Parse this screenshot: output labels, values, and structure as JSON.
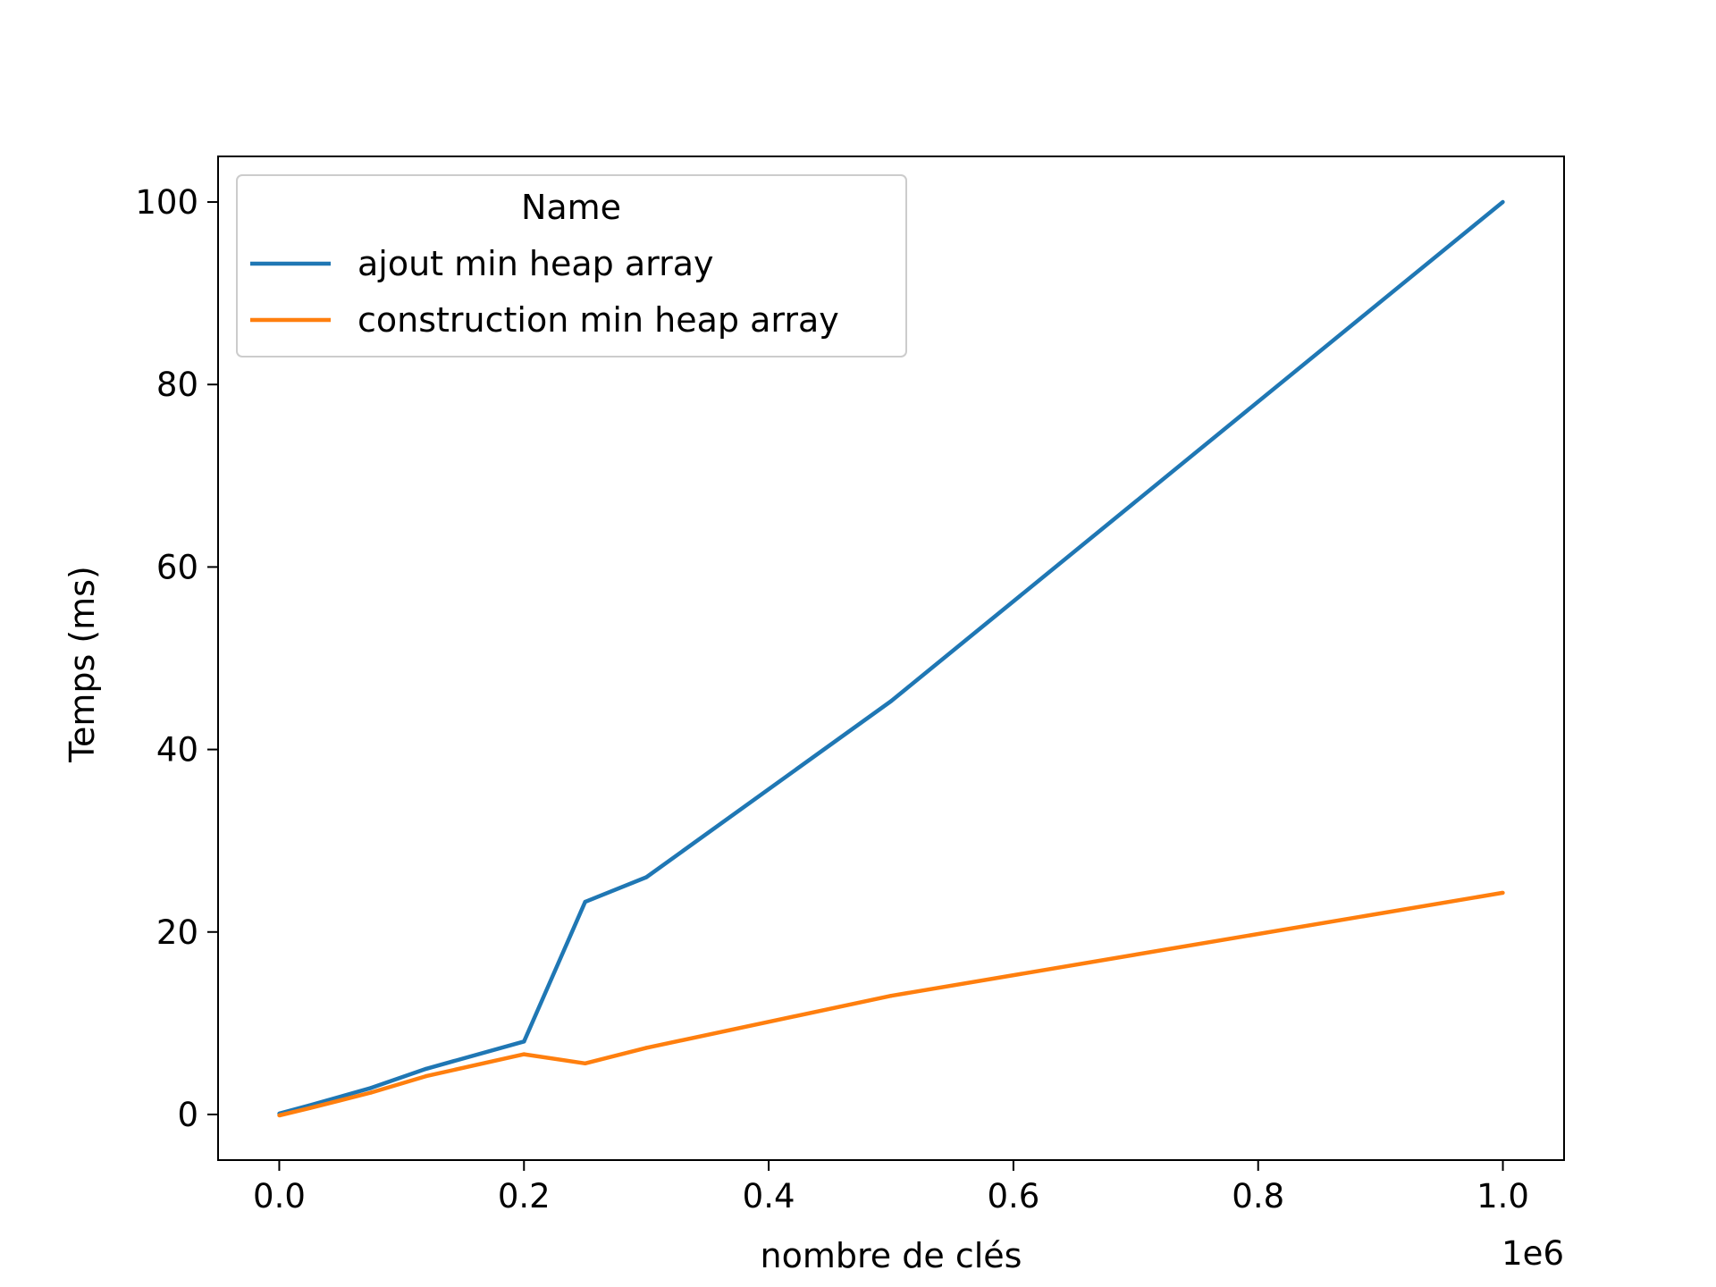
{
  "chart_data": {
    "type": "line",
    "title": "",
    "xlabel": "nombre de clés",
    "ylabel": "Temps (ms)",
    "x_offset_label": "1e6",
    "xlim": [
      -0.05,
      1.05
    ],
    "ylim": [
      -5,
      105
    ],
    "x_ticks": [
      0.0,
      0.2,
      0.4,
      0.6,
      0.8,
      1.0
    ],
    "x_tick_labels": [
      "0.0",
      "0.2",
      "0.4",
      "0.6",
      "0.8",
      "1.0"
    ],
    "y_ticks": [
      0,
      20,
      40,
      60,
      80,
      100
    ],
    "y_tick_labels": [
      "0",
      "20",
      "40",
      "60",
      "80",
      "100"
    ],
    "grid": false,
    "legend": {
      "title": "Name",
      "placement": "upper-left"
    },
    "series": [
      {
        "name": "ajout min heap array",
        "color": "#1f77b4",
        "x": [
          0.0,
          0.025,
          0.075,
          0.12,
          0.2,
          0.25,
          0.3,
          0.5,
          1.0
        ],
        "y": [
          0.1,
          1.0,
          2.9,
          5.0,
          8.0,
          23.3,
          26.0,
          45.3,
          100.0
        ]
      },
      {
        "name": "construction min heap array",
        "color": "#ff7f0e",
        "x": [
          0.0,
          0.025,
          0.075,
          0.12,
          0.2,
          0.25,
          0.3,
          0.5,
          1.0
        ],
        "y": [
          -0.1,
          0.7,
          2.4,
          4.2,
          6.6,
          5.6,
          7.3,
          13.0,
          24.3
        ]
      }
    ]
  }
}
